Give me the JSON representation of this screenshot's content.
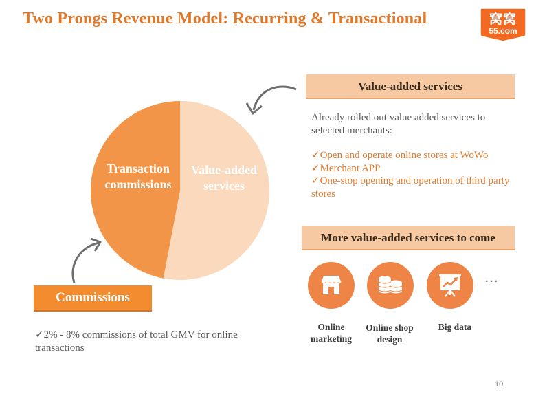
{
  "slide": {
    "title": "Two Prongs Revenue Model:  Recurring & Transactional",
    "page_number": "10"
  },
  "logo": {
    "top_text": "窝窝",
    "bottom_text": "55.com"
  },
  "pie": {
    "transaction_label": "Transaction commissions",
    "vas_label": "Value-added services",
    "transaction_share": 0.47,
    "vas_share": 0.53
  },
  "value_added": {
    "header": "Value-added services",
    "description": "Already rolled out value added services to selected merchants:",
    "items": [
      {
        "check": "✓",
        "text": "Open and operate online stores at WoWo",
        "colored": true
      },
      {
        "check": "✓",
        "text": "Merchant APP",
        "colored": true
      },
      {
        "check": "✓",
        "text": "One-stop opening and operation of third ",
        "rest": "party stores",
        "colored": true
      }
    ]
  },
  "more_services": {
    "header": "More value-added services to come",
    "ellipsis": "…",
    "icons": [
      {
        "icon": "storefront-icon",
        "label": "Online marketing"
      },
      {
        "icon": "coin-stack-icon",
        "label": "Online shop design"
      },
      {
        "icon": "chart-board-icon",
        "label": "Big data"
      }
    ]
  },
  "commissions": {
    "header": "Commissions",
    "description": "✓2% - 8% commissions of total GMV for online transactions"
  },
  "colors": {
    "accent": "#E0782A",
    "pie_dark": "#F39548",
    "pie_light": "#FAD9BD",
    "header_fill": "#F7C9A3",
    "commission_fill": "#F28C2F",
    "icon_fill": "#EE8546"
  }
}
